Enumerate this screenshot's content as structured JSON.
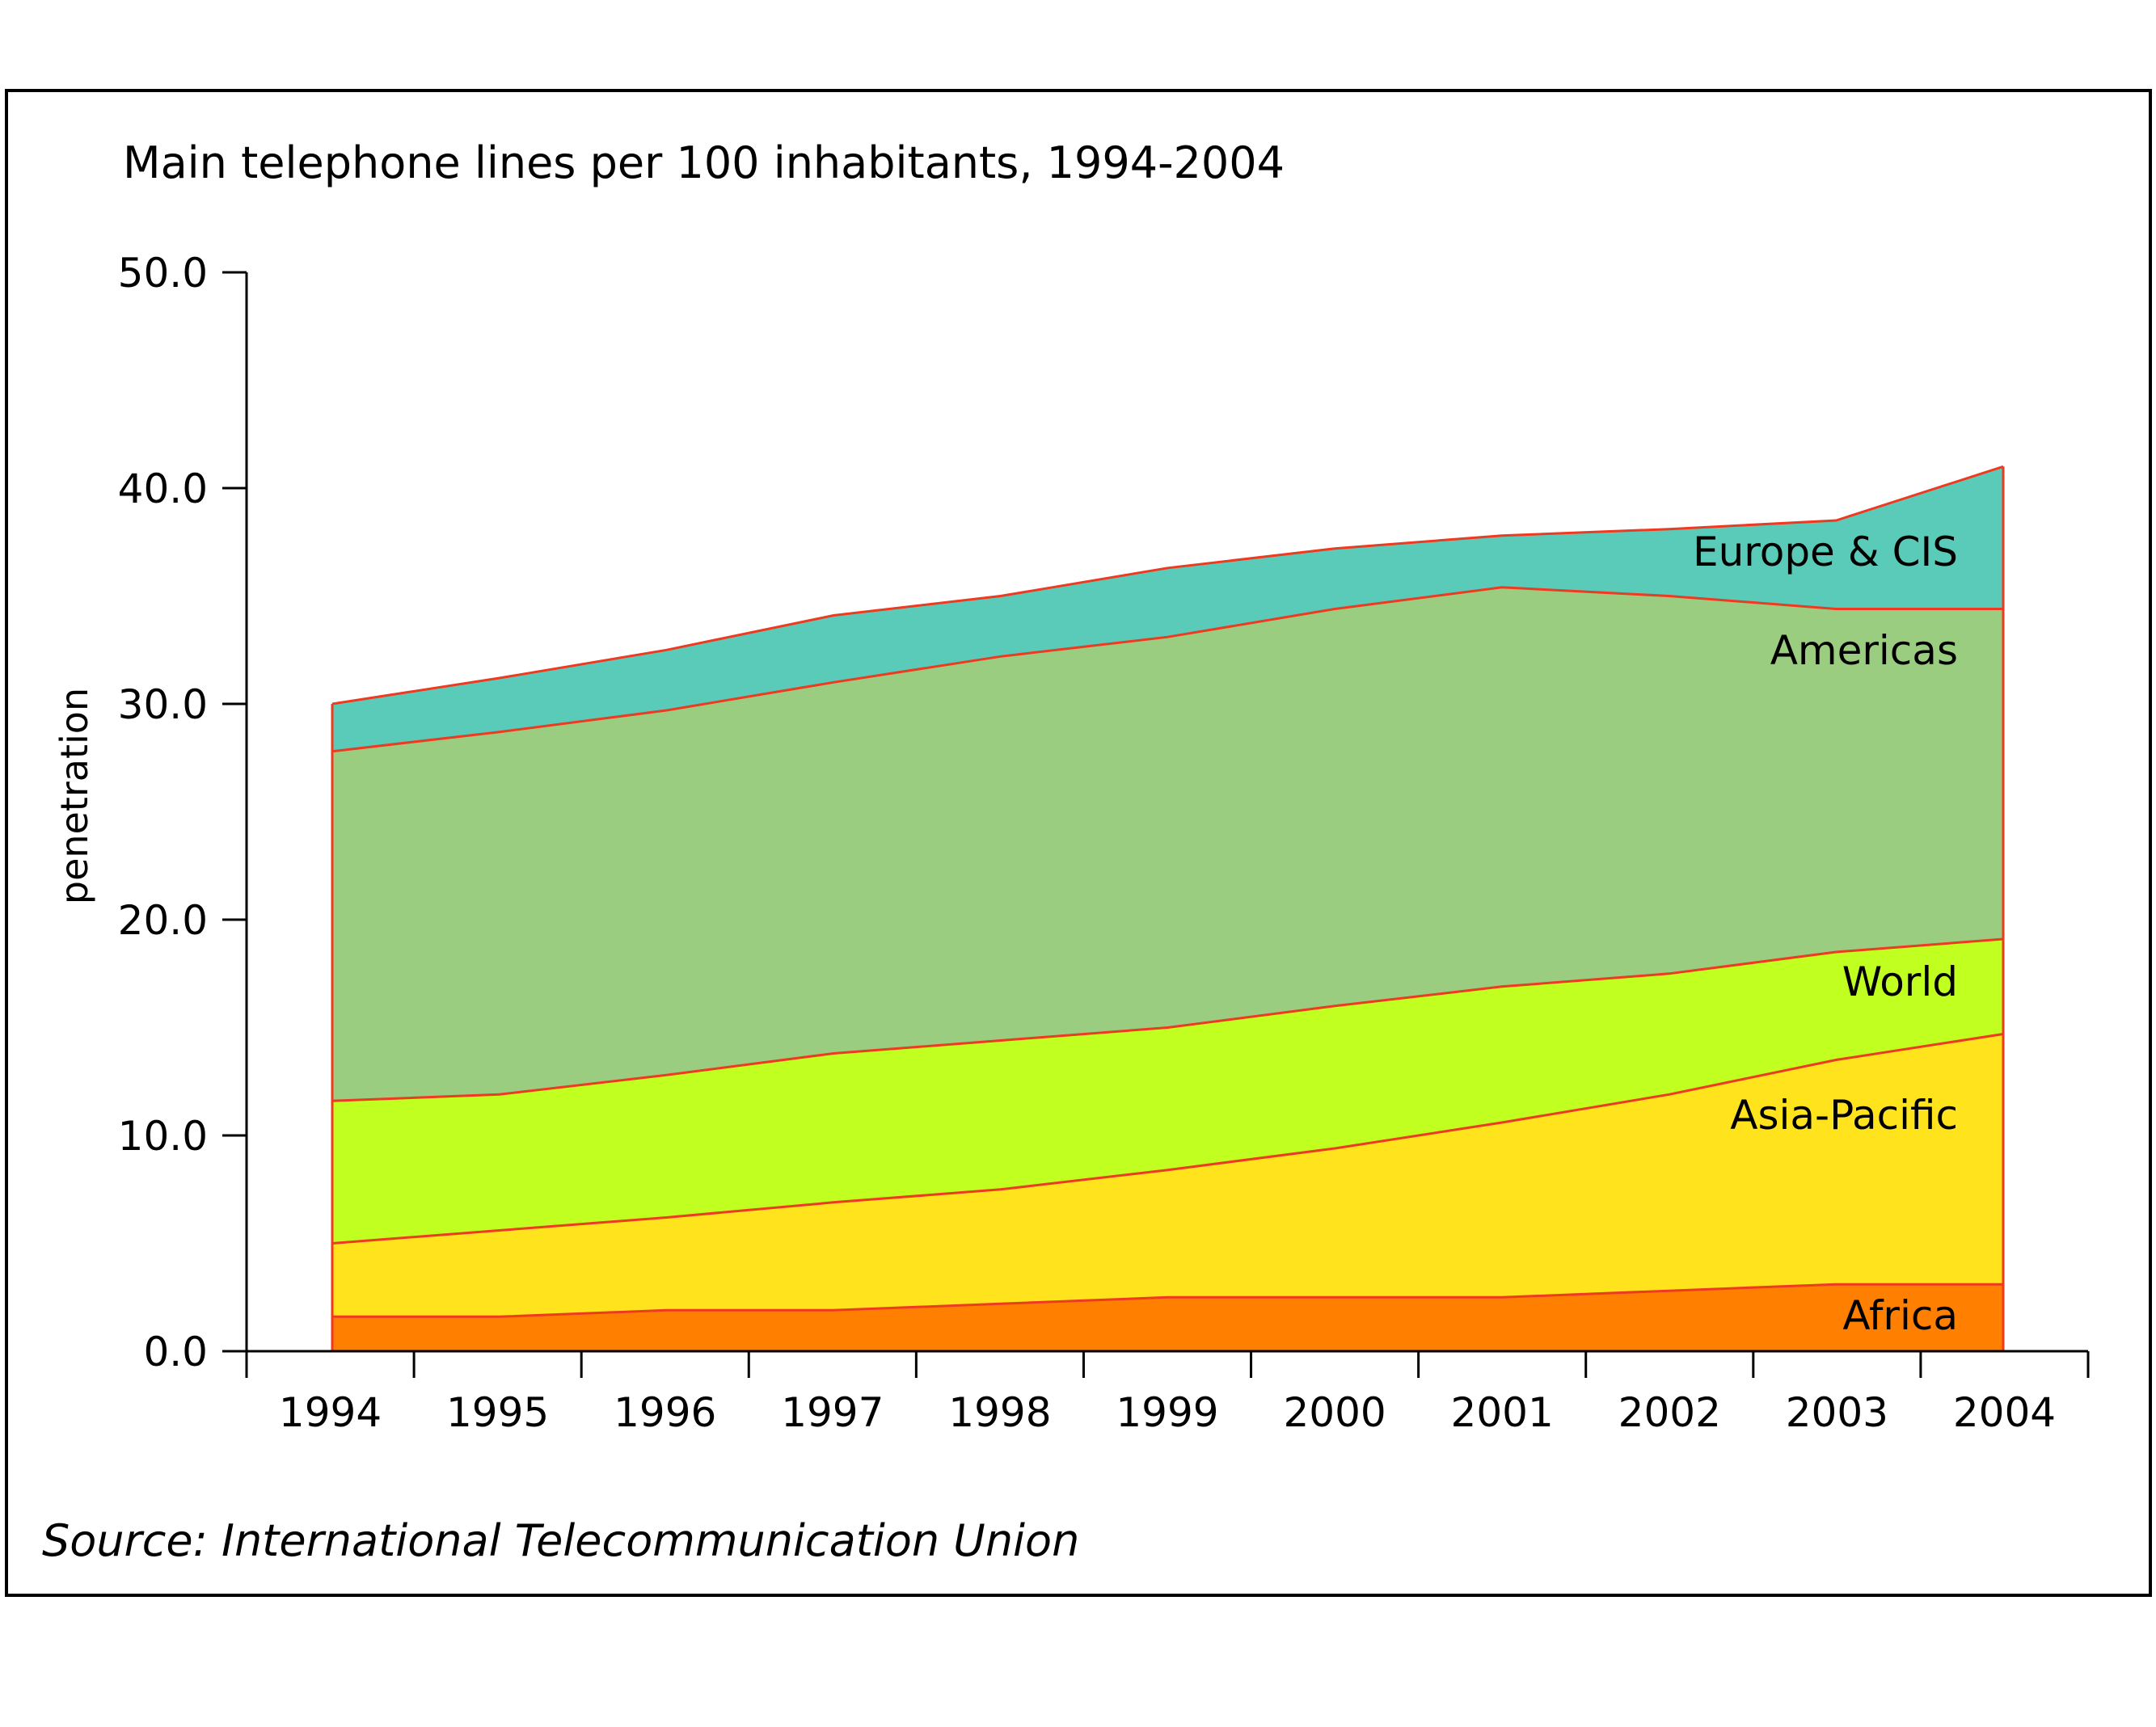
{
  "chart_data": {
    "type": "area",
    "title": "Main telephone lines per 100 inhabitants, 1994-2004",
    "ylabel": "penetration",
    "xlabel": "",
    "source": "Source: International Telecommunication Union",
    "ylim": [
      0,
      50
    ],
    "yticks": [
      "0.0",
      "10.0",
      "20.0",
      "30.0",
      "40.0",
      "50.0"
    ],
    "ytick_values": [
      0,
      10,
      20,
      30,
      40,
      50
    ],
    "x": [
      "1994",
      "1995",
      "1996",
      "1997",
      "1998",
      "1999",
      "2000",
      "2001",
      "2002",
      "2003",
      "2004"
    ],
    "grid": false,
    "stacked_overlay": true,
    "series": [
      {
        "name": "Europe & CIS",
        "color": "#5bcbb9",
        "values": [
          30.0,
          31.2,
          32.5,
          34.1,
          35.0,
          36.3,
          37.2,
          37.8,
          38.1,
          38.5,
          41.0
        ]
      },
      {
        "name": "Americas",
        "color": "#9acd80",
        "values": [
          27.8,
          28.7,
          29.7,
          31.0,
          32.2,
          33.1,
          34.4,
          35.4,
          35.0,
          34.4,
          34.4
        ]
      },
      {
        "name": "World",
        "color": "#c0ff1f",
        "values": [
          11.6,
          11.9,
          12.8,
          13.8,
          14.4,
          15.0,
          16.0,
          16.9,
          17.5,
          18.5,
          19.1
        ]
      },
      {
        "name": "Asia-Pacific",
        "color": "#ffe31d",
        "values": [
          5.0,
          5.6,
          6.2,
          6.9,
          7.5,
          8.4,
          9.4,
          10.6,
          11.9,
          13.5,
          14.7
        ]
      },
      {
        "name": "Africa",
        "color": "#ff7f00",
        "values": [
          1.6,
          1.6,
          1.9,
          1.9,
          2.2,
          2.5,
          2.5,
          2.5,
          2.8,
          3.1,
          3.1
        ]
      }
    ],
    "line_color": "#ee3a20"
  }
}
